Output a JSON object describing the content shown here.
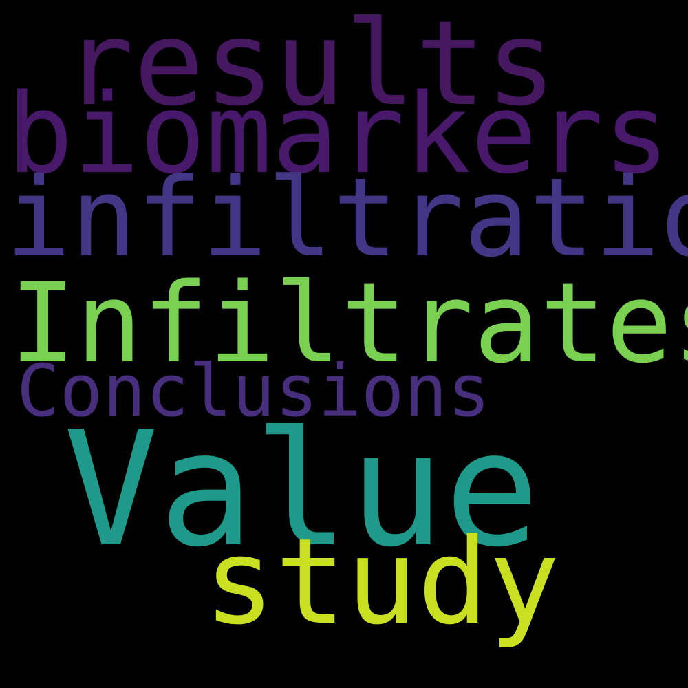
{
  "background": "#000000",
  "words": {
    "results": {
      "text": "results",
      "color": "#46185f"
    },
    "biomarkers": {
      "text": "biomarkers",
      "color": "#48186a"
    },
    "infiltration": {
      "text": "infiltration",
      "color": "#433684"
    },
    "infiltrates": {
      "text": "Infiltrates",
      "color": "#7ad151"
    },
    "conclusions": {
      "text": "Conclusions",
      "color": "#472f7d"
    },
    "value": {
      "text": "Value",
      "color": "#1f9a8a"
    },
    "study": {
      "text": "study",
      "color": "#c8e020"
    }
  }
}
